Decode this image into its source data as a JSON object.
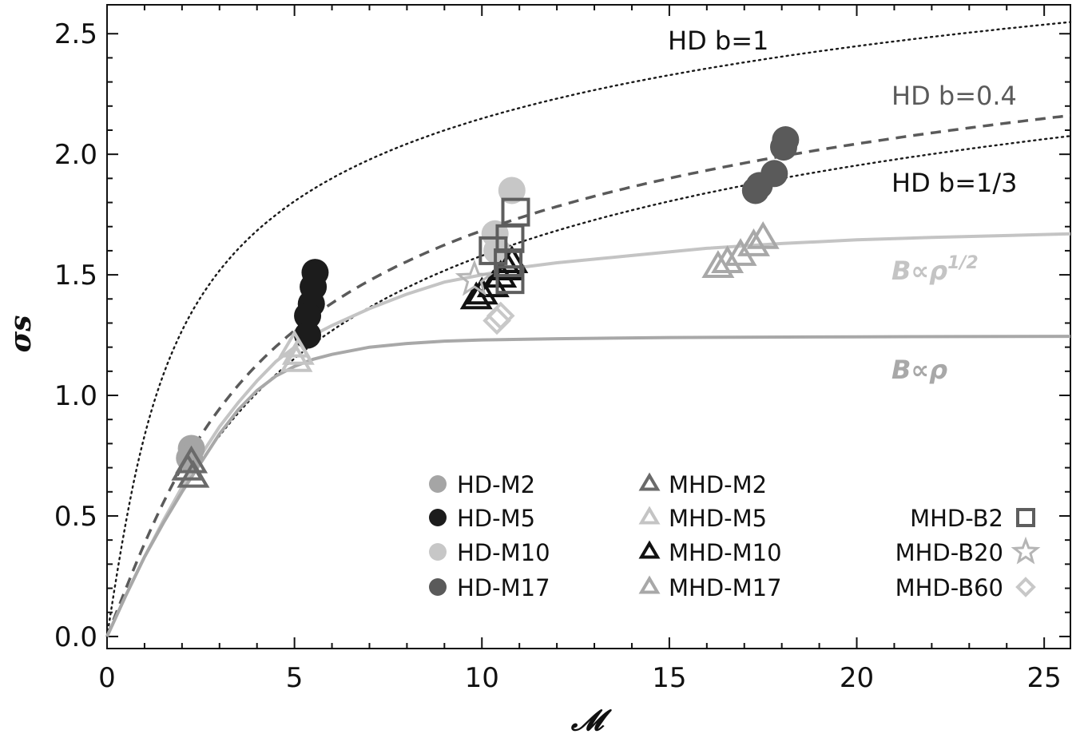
{
  "chart_data": {
    "type": "scatter",
    "xlabel": "𝓜",
    "ylabel": "σs",
    "xlim": [
      0,
      25.7
    ],
    "ylim": [
      -0.05,
      2.62
    ],
    "xticks": [
      0,
      5,
      10,
      15,
      20,
      25
    ],
    "xtick_labels": [
      "0",
      "5",
      "10",
      "15",
      "20",
      "25"
    ],
    "yticks": [
      0.0,
      0.5,
      1.0,
      1.5,
      2.0,
      2.5
    ],
    "ytick_labels": [
      "0.0",
      "0.5",
      "1.0",
      "1.5",
      "2.0",
      "2.5"
    ],
    "grid": false,
    "legend_position": "bottom-right",
    "curve_labels": {
      "hd_b1": "HD  b=1",
      "hd_b04": "HD  b=0.4",
      "hd_b13": "HD  b=1/3",
      "b_sqrt_rho": "B∝ρ",
      "b_sqrt_rho_exp": "1/2",
      "b_rho": "B∝ρ"
    },
    "curves": [
      {
        "id": "hd_b1",
        "b": 1.0,
        "color": "#1a1a1a",
        "style": "dotted"
      },
      {
        "id": "hd_b04",
        "b": 0.4,
        "color": "#5a5a5a",
        "style": "dashed"
      },
      {
        "id": "hd_b13",
        "b": 0.3333,
        "color": "#1a1a1a",
        "style": "dotted"
      },
      {
        "id": "b_sqrt_rho",
        "color": "#c4c4c4",
        "style": "solid",
        "x": [
          0,
          0.5,
          1,
          1.5,
          2,
          2.5,
          3,
          3.5,
          4,
          4.5,
          5,
          5.5,
          6,
          7,
          8,
          9,
          10,
          11,
          12,
          14,
          16,
          18,
          20,
          22,
          25.7
        ],
        "y": [
          0,
          0.17,
          0.33,
          0.48,
          0.62,
          0.75,
          0.87,
          0.97,
          1.06,
          1.14,
          1.2,
          1.25,
          1.29,
          1.36,
          1.42,
          1.47,
          1.5,
          1.53,
          1.55,
          1.58,
          1.61,
          1.63,
          1.645,
          1.655,
          1.67
        ]
      },
      {
        "id": "b_rho",
        "color": "#a8a8a8",
        "style": "solid",
        "x": [
          0,
          0.5,
          1,
          1.5,
          2,
          2.5,
          3,
          3.5,
          4,
          4.5,
          5,
          5.5,
          6,
          7,
          8,
          9,
          10,
          12,
          15,
          20,
          25.7
        ],
        "y": [
          0,
          0.17,
          0.33,
          0.47,
          0.6,
          0.72,
          0.84,
          0.94,
          1.02,
          1.08,
          1.12,
          1.15,
          1.17,
          1.2,
          1.215,
          1.225,
          1.23,
          1.235,
          1.24,
          1.243,
          1.245
        ]
      }
    ],
    "series": [
      {
        "name": "HD-M2",
        "marker": "circle",
        "color": "#a5a5a5",
        "filled": true,
        "points": [
          [
            2.25,
            0.78
          ],
          [
            2.2,
            0.74
          ]
        ]
      },
      {
        "name": "HD-M5",
        "marker": "circle",
        "color": "#1c1c1c",
        "filled": true,
        "points": [
          [
            5.55,
            1.51
          ],
          [
            5.5,
            1.45
          ],
          [
            5.45,
            1.38
          ],
          [
            5.35,
            1.33
          ],
          [
            5.35,
            1.25
          ]
        ]
      },
      {
        "name": "HD-M10",
        "marker": "circle",
        "color": "#c7c7c7",
        "filled": true,
        "points": [
          [
            10.8,
            1.85
          ],
          [
            10.35,
            1.67
          ],
          [
            10.4,
            1.6
          ]
        ]
      },
      {
        "name": "HD-M17",
        "marker": "circle",
        "color": "#5a5a5a",
        "filled": true,
        "points": [
          [
            18.1,
            2.06
          ],
          [
            18.05,
            2.03
          ],
          [
            17.8,
            1.92
          ],
          [
            17.4,
            1.87
          ],
          [
            17.3,
            1.85
          ]
        ]
      },
      {
        "name": "MHD-M2",
        "marker": "triangle",
        "color": "#6a6a6a",
        "filled": false,
        "points": [
          [
            2.25,
            0.72
          ],
          [
            2.15,
            0.69
          ],
          [
            2.3,
            0.66
          ]
        ]
      },
      {
        "name": "MHD-M5",
        "marker": "triangle",
        "color": "#c4c4c4",
        "filled": false,
        "points": [
          [
            5.0,
            1.2
          ],
          [
            5.1,
            1.17
          ],
          [
            5.05,
            1.14
          ]
        ]
      },
      {
        "name": "MHD-M10",
        "marker": "triangle",
        "color": "#111111",
        "filled": false,
        "points": [
          [
            9.85,
            1.4
          ],
          [
            10.0,
            1.42
          ],
          [
            10.3,
            1.45
          ],
          [
            10.5,
            1.49
          ],
          [
            10.7,
            1.52
          ],
          [
            10.8,
            1.55
          ]
        ]
      },
      {
        "name": "MHD-M17",
        "marker": "triangle",
        "color": "#a8a8a8",
        "filled": false,
        "points": [
          [
            16.3,
            1.53
          ],
          [
            16.55,
            1.55
          ],
          [
            16.9,
            1.58
          ],
          [
            17.25,
            1.62
          ],
          [
            17.5,
            1.65
          ]
        ]
      },
      {
        "name": "MHD-B2",
        "marker": "square",
        "color": "#5e5e5e",
        "filled": false,
        "points": [
          [
            10.9,
            1.76
          ],
          [
            10.75,
            1.65
          ],
          [
            10.3,
            1.6
          ],
          [
            10.7,
            1.55
          ],
          [
            10.75,
            1.48
          ]
        ]
      },
      {
        "name": "MHD-B20",
        "marker": "star",
        "color": "#b5b5b5",
        "filled": false,
        "points": [
          [
            9.8,
            1.48
          ]
        ]
      },
      {
        "name": "MHD-B60",
        "marker": "diamond",
        "color": "#c8c8c8",
        "filled": false,
        "points": [
          [
            10.5,
            1.33
          ],
          [
            10.4,
            1.31
          ]
        ]
      }
    ],
    "legend": [
      {
        "series": "HD-M2",
        "label": "HD-M2"
      },
      {
        "series": "HD-M5",
        "label": "HD-M5"
      },
      {
        "series": "HD-M10",
        "label": "HD-M10"
      },
      {
        "series": "HD-M17",
        "label": "HD-M17"
      },
      {
        "series": "MHD-M2",
        "label": "MHD-M2"
      },
      {
        "series": "MHD-M5",
        "label": "MHD-M5"
      },
      {
        "series": "MHD-M10",
        "label": "MHD-M10"
      },
      {
        "series": "MHD-M17",
        "label": "MHD-M17"
      },
      {
        "series": "MHD-B2",
        "label": "MHD-B2"
      },
      {
        "series": "MHD-B20",
        "label": "MHD-B20"
      },
      {
        "series": "MHD-B60",
        "label": "MHD-B60"
      }
    ]
  }
}
